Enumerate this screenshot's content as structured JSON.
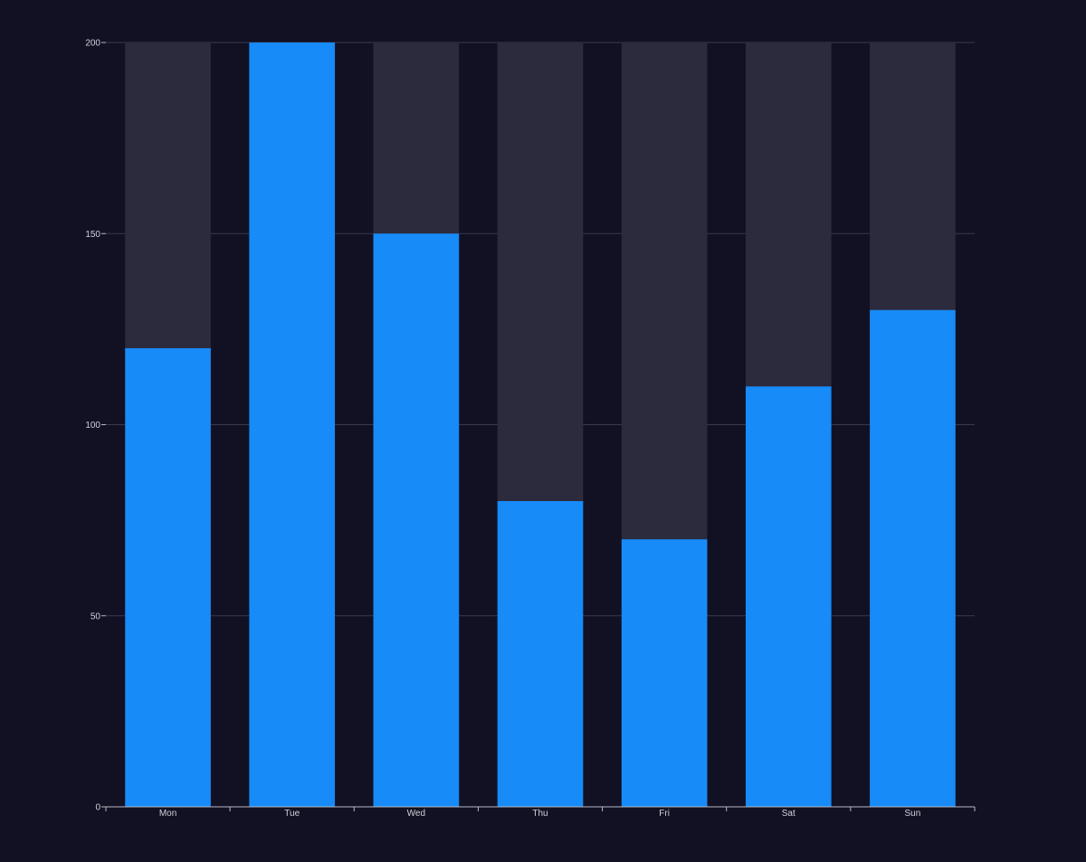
{
  "chart_data": {
    "type": "bar",
    "categories": [
      "Mon",
      "Tue",
      "Wed",
      "Thu",
      "Fri",
      "Sat",
      "Sun"
    ],
    "values": [
      120,
      200,
      150,
      80,
      70,
      110,
      130
    ],
    "background_value": 200,
    "ylim": [
      0,
      200
    ],
    "y_ticks": [
      "0",
      "50",
      "100",
      "150",
      "200"
    ],
    "title": "",
    "xlabel": "",
    "ylabel": "",
    "grid": true,
    "legend": "none"
  },
  "colors": {
    "page_background": "#121124",
    "bar": "#178bf8",
    "bar_background": "#2c2b3d",
    "grid": "#3a394c",
    "axis": "#b8b8c2",
    "tick_text": "#d0d0d8"
  }
}
